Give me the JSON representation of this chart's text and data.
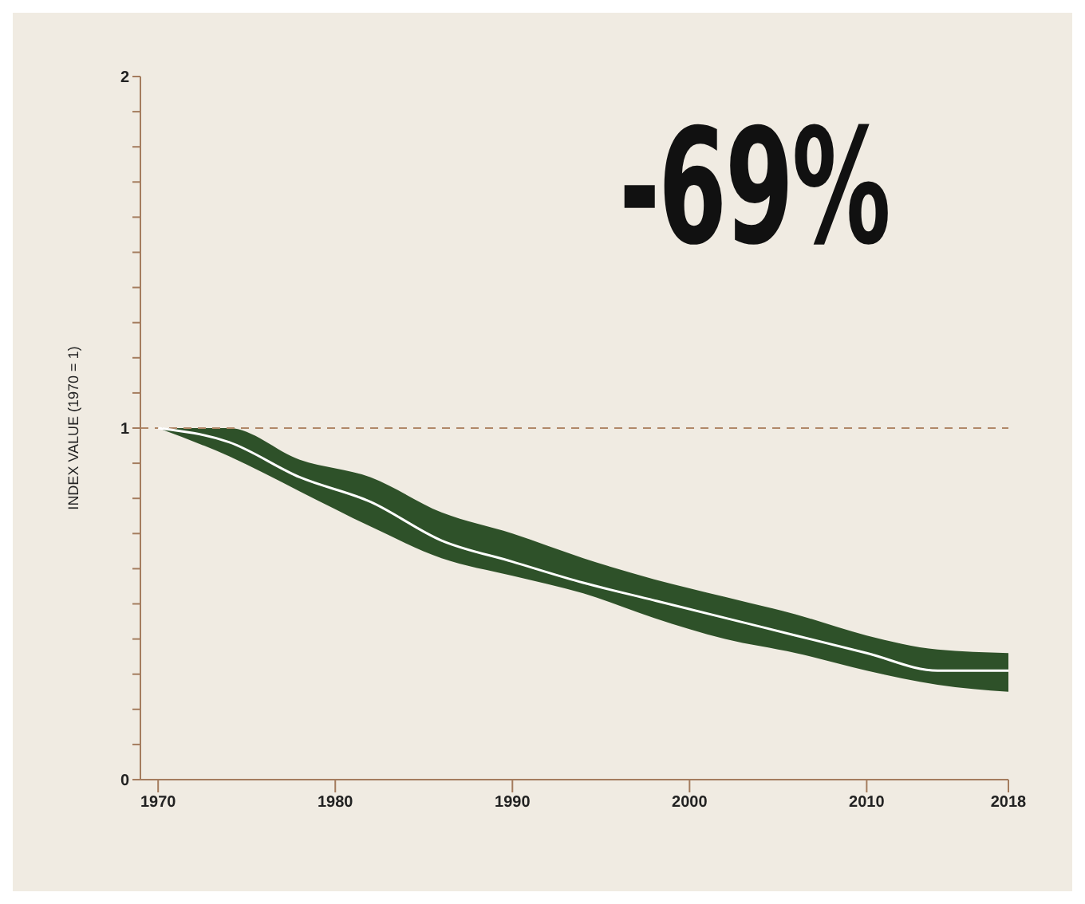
{
  "chart_data": {
    "type": "line",
    "ylabel": "INDEX VALUE (1970 = 1)",
    "annotations": [
      "-69%"
    ],
    "x": [
      1970,
      1974,
      1978,
      1982,
      1986,
      1990,
      1994,
      1998,
      2002,
      2006,
      2010,
      2014,
      2018
    ],
    "series": [
      {
        "color": "#ffffff",
        "values": [
          1.0,
          0.96,
          0.86,
          0.79,
          0.68,
          0.62,
          0.56,
          0.51,
          0.46,
          0.41,
          0.36,
          0.31,
          0.31
        ],
        "lower": [
          1.0,
          0.92,
          0.82,
          0.72,
          0.63,
          0.58,
          0.53,
          0.46,
          0.4,
          0.36,
          0.31,
          0.27,
          0.25
        ],
        "upper": [
          1.0,
          1.0,
          0.91,
          0.86,
          0.76,
          0.7,
          0.63,
          0.57,
          0.52,
          0.47,
          0.41,
          0.37,
          0.36
        ]
      }
    ],
    "xlim": [
      1969,
      2018
    ],
    "ylim": [
      0,
      2
    ],
    "xticks": [
      1970,
      1980,
      1990,
      2000,
      2010,
      2018
    ],
    "yticks": [
      0,
      {
        "value": 0.1,
        "label": null
      },
      {
        "value": 0.2,
        "label": null
      },
      {
        "value": 0.3,
        "label": null
      },
      {
        "value": 0.4,
        "label": null
      },
      {
        "value": 0.5,
        "label": null
      },
      {
        "value": 0.6,
        "label": null
      },
      {
        "value": 0.7,
        "label": null
      },
      {
        "value": 0.8,
        "label": null
      },
      {
        "value": 0.9,
        "label": null
      },
      1,
      {
        "value": 1.1,
        "label": null
      },
      {
        "value": 1.2,
        "label": null
      },
      {
        "value": 1.3,
        "label": null
      },
      {
        "value": 1.4,
        "label": null
      },
      {
        "value": 1.5,
        "label": null
      },
      {
        "value": 1.6,
        "label": null
      },
      {
        "value": 1.7,
        "label": null
      },
      {
        "value": 1.8,
        "label": null
      },
      {
        "value": 1.9,
        "label": null
      },
      2
    ],
    "ref_lines": [
      {
        "axis": "y",
        "value": 1,
        "color": "#b08868",
        "line_style": "dashed"
      }
    ],
    "grid": false,
    "legend": false,
    "marker": "none"
  }
}
